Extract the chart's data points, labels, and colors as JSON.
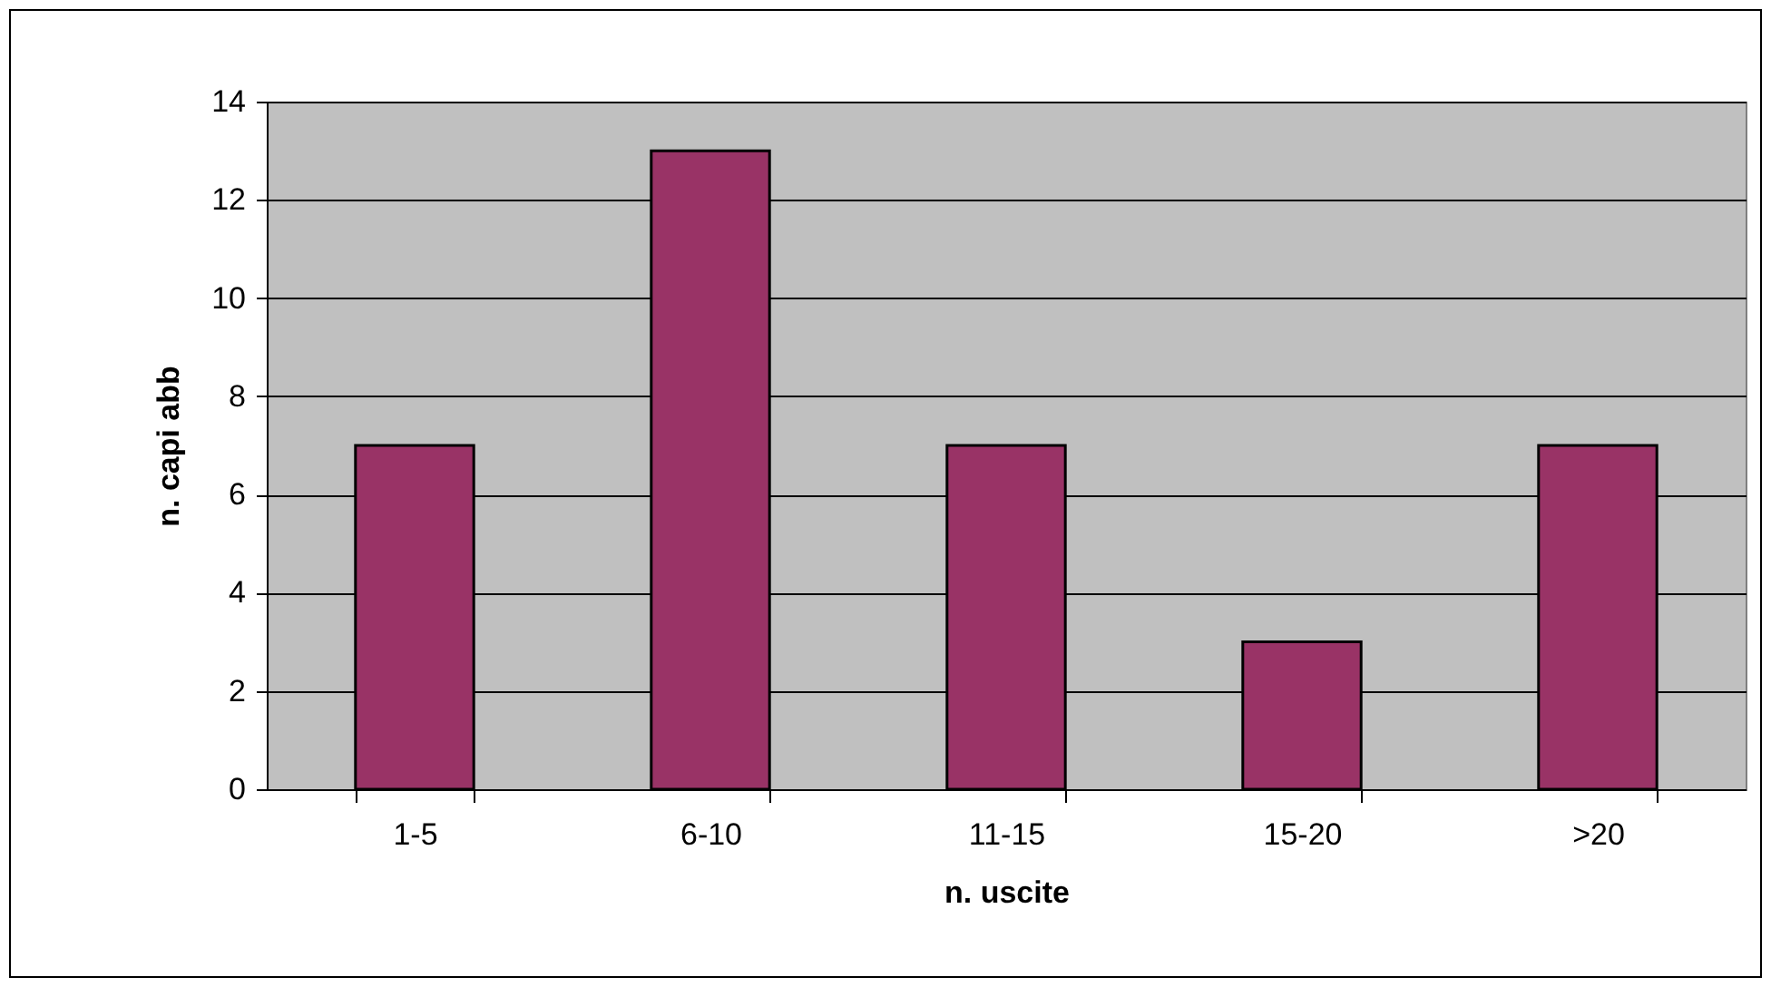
{
  "chart_data": {
    "type": "bar",
    "xlabel": "n. uscite",
    "ylabel": "n. capi abb",
    "categories": [
      "1-5",
      "6-10",
      "11-15",
      "15-20",
      ">20"
    ],
    "values": [
      7,
      13,
      7,
      3,
      7
    ],
    "color": "#993366",
    "ylim": [
      0,
      14
    ],
    "yticks": [
      0,
      2,
      4,
      6,
      8,
      10,
      12,
      14
    ],
    "grid": "y"
  }
}
